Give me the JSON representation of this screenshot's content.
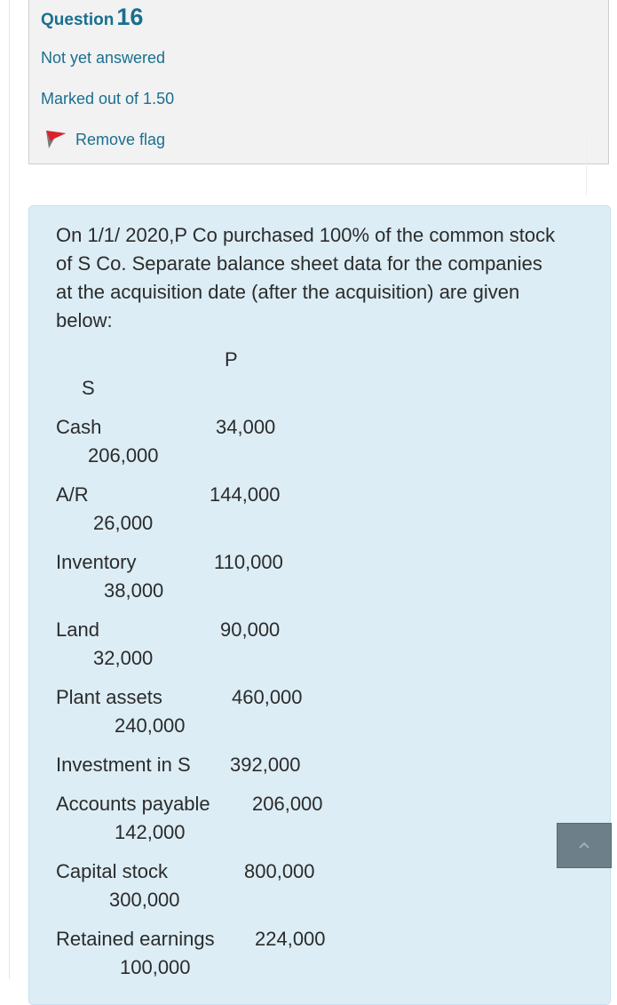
{
  "question": {
    "label": "Question",
    "number": "16",
    "status": "Not yet answered",
    "marks": "Marked out of 1.50",
    "flag_label": "Remove flag",
    "flag_color": "#d9232e"
  },
  "content": {
    "intro": "On 1/1/ 2020,P Co purchased 100% of the common stock of S Co. Separate balance sheet data for the companies at the acquisition date (after the acquisition) are given below:",
    "col_p": "P",
    "col_s": "S",
    "rows": [
      {
        "label": "Cash",
        "p": "34,000",
        "s": "206,000"
      },
      {
        "label": "A/R",
        "p": "144,000",
        "s": "26,000"
      },
      {
        "label": "Inventory",
        "p": "110,000",
        "s": "38,000"
      },
      {
        "label": "Land",
        "p": "90,000",
        "s": "32,000"
      },
      {
        "label": "Plant assets",
        "p": "460,000",
        "s": "240,000"
      },
      {
        "label": "Investment in S",
        "p": "392,000",
        "s": ""
      },
      {
        "label": "Accounts payable",
        "p": "206,000",
        "s": "142,000"
      },
      {
        "label": "Capital stock",
        "p": "800,000",
        "s": "300,000"
      },
      {
        "label": "Retained earnings",
        "p": "224,000",
        "s": "100,000"
      }
    ]
  },
  "colors": {
    "link": "#1a6f8f",
    "info_bg": "#f2f2f2",
    "content_bg": "#dcedf5",
    "button_bg": "#6d7f88"
  }
}
